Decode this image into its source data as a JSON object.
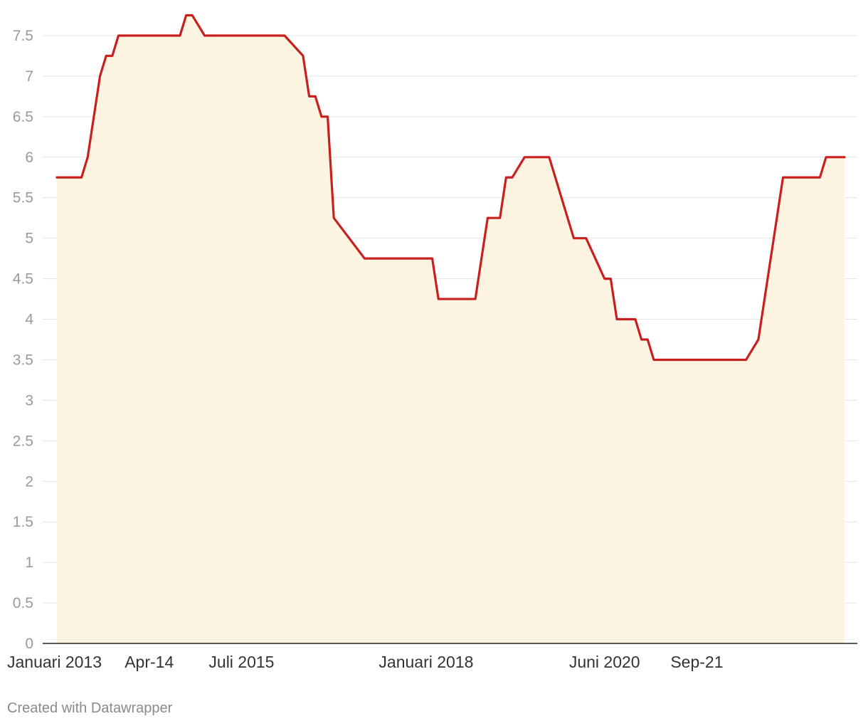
{
  "chart_data": {
    "type": "area",
    "title": "",
    "xlabel": "",
    "ylabel": "",
    "ylim": [
      0,
      7.75
    ],
    "grid": true,
    "y_ticks": [
      "0",
      "0.5",
      "1",
      "1.5",
      "2",
      "2.5",
      "3",
      "3.5",
      "4",
      "4.5",
      "5",
      "5.5",
      "6",
      "6.5",
      "7",
      "7.5"
    ],
    "x_ticks": [
      {
        "label": "Januari 2013",
        "date": "2013-01"
      },
      {
        "label": "Apr-14",
        "date": "2014-04"
      },
      {
        "label": "Juli 2015",
        "date": "2015-07"
      },
      {
        "label": "Januari 2018",
        "date": "2018-01"
      },
      {
        "label": "Juni 2020",
        "date": "2020-06"
      },
      {
        "label": "Sep-21",
        "date": "2021-09"
      }
    ],
    "x_range": [
      "2013-01",
      "2023-09"
    ],
    "line_color": "#c8201e",
    "fill_color": "#fdf3e1",
    "series": [
      {
        "name": "",
        "x": [
          "2013-01",
          "2013-05",
          "2013-06",
          "2013-08",
          "2013-09",
          "2013-10",
          "2013-11",
          "2014-09",
          "2014-10",
          "2014-11",
          "2015-01",
          "2015-02",
          "2016-02",
          "2016-05",
          "2016-06",
          "2016-07",
          "2016-08",
          "2016-09",
          "2016-10",
          "2017-03",
          "2017-04",
          "2018-02",
          "2018-03",
          "2018-09",
          "2018-10",
          "2018-11",
          "2019-01",
          "2019-02",
          "2019-03",
          "2019-05",
          "2019-06",
          "2019-07",
          "2019-08",
          "2019-09",
          "2020-01",
          "2020-02",
          "2020-03",
          "2020-06",
          "2020-07",
          "2020-08",
          "2020-11",
          "2020-12",
          "2021-01",
          "2021-02",
          "2021-03",
          "2022-05",
          "2022-07",
          "2022-08",
          "2022-09",
          "2022-10",
          "2022-11",
          "2023-05",
          "2023-06",
          "2023-09"
        ],
        "values": [
          5.75,
          5.75,
          6,
          7,
          7.25,
          7.25,
          7.5,
          7.5,
          7.75,
          7.75,
          7.5,
          7.5,
          7.5,
          7.25,
          6.75,
          6.75,
          6.5,
          6.5,
          5.25,
          4.75,
          4.75,
          4.75,
          4.25,
          4.25,
          4.75,
          5.25,
          5.25,
          5.75,
          5.75,
          6,
          6,
          6,
          6,
          6,
          5,
          5,
          5,
          4.5,
          4.5,
          4,
          4,
          3.75,
          3.75,
          3.5,
          3.5,
          3.5,
          3.75,
          4.25,
          4.75,
          5.25,
          5.75,
          5.75,
          6,
          6
        ]
      }
    ]
  },
  "footer": {
    "credit": "Created with Datawrapper"
  }
}
